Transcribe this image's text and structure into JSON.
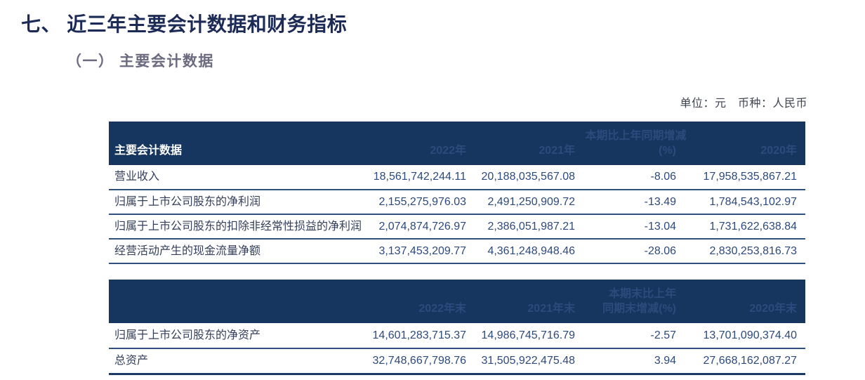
{
  "document": {
    "section_title": "七、 近三年主要会计数据和财务指标",
    "subsection_title": "（一） 主要会计数据",
    "unit_note": "单位：元　币种：人民币"
  },
  "colors": {
    "title_text": "#1c2a56",
    "subtitle_text": "#6b6a7f",
    "table_header_bg": "#16365f",
    "table_header_text": "#ffffff",
    "table_body_text": "#2d4a7c",
    "row_border": "#30507e"
  },
  "table1": {
    "header": {
      "col_label": "主要会计数据",
      "year1": "2022年",
      "year2": "2021年",
      "change_line1": "本期比上年同期增减",
      "change_line2": "(%)",
      "year3": "2020年"
    },
    "rows": [
      [
        "营业收入",
        "18,561,742,244.11",
        "20,188,035,567.08",
        "-8.06",
        "17,958,535,867.21"
      ],
      [
        "归属于上市公司股东的净利润",
        "2,155,275,976.03",
        "2,491,250,909.72",
        "-13.49",
        "1,784,543,102.97"
      ],
      [
        "归属于上市公司股东的扣除非经常性损益的净利润",
        "2,074,874,726.97",
        "2,386,051,987.21",
        "-13.04",
        "1,731,622,638.84"
      ],
      [
        "经营活动产生的现金流量净额",
        "3,137,453,209.77",
        "4,361,248,948.46",
        "-28.06",
        "2,830,253,816.73"
      ]
    ]
  },
  "table2": {
    "header": {
      "col_label": "",
      "year1": "2022年末",
      "year2": "2021年末",
      "change_line1": "本期末比上年",
      "change_line2": "同期末增减(%)",
      "year3": "2020年末"
    },
    "rows": [
      [
        "归属于上市公司股东的净资产",
        "14,601,283,715.37",
        "14,986,745,716.79",
        "-2.57",
        "13,701,090,374.40"
      ],
      [
        "总资产",
        "32,748,667,798.76",
        "31,505,922,475.48",
        "3.94",
        "27,668,162,087.27"
      ]
    ]
  }
}
